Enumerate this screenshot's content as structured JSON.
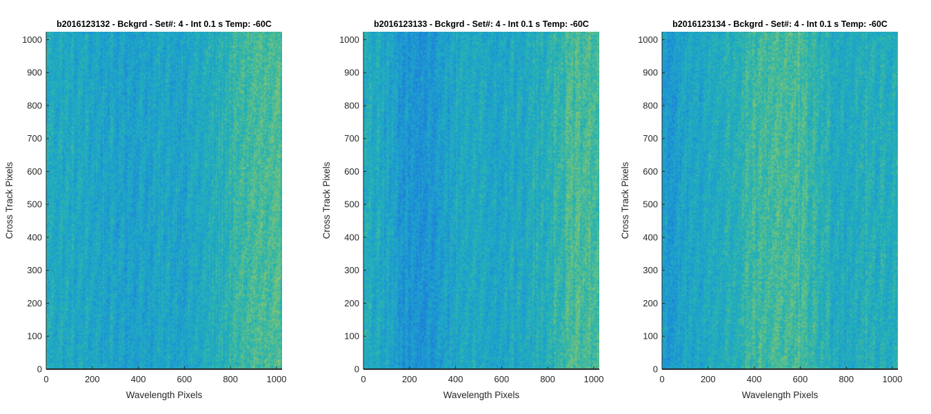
{
  "chart_data": [
    {
      "type": "heatmap",
      "title": "b2016123132 - Bckgrd - Set#: 4 - Int 0.1 s Temp: -60C",
      "xlabel": "Wavelength Pixels",
      "ylabel": "Cross Track Pixels",
      "xlim": [
        0,
        1024
      ],
      "ylim": [
        0,
        1024
      ],
      "xticks": [
        0,
        200,
        400,
        600,
        800,
        1000
      ],
      "yticks": [
        0,
        100,
        200,
        300,
        400,
        500,
        600,
        700,
        800,
        900,
        1000
      ],
      "colormap": [
        "#1f7fd9",
        "#1d9fd0",
        "#25b3b3",
        "#6cc17f",
        "#b5c85a"
      ],
      "column_profile": {
        "x": [
          0,
          100,
          200,
          300,
          400,
          500,
          600,
          700,
          800,
          900,
          1024
        ],
        "level": [
          0.42,
          0.36,
          0.34,
          0.3,
          0.3,
          0.32,
          0.33,
          0.38,
          0.5,
          0.62,
          0.58
        ]
      },
      "grid": false
    },
    {
      "type": "heatmap",
      "title": "b2016123133 - Bckgrd - Set#: 4 - Int 0.1 s Temp: -60C",
      "xlabel": "Wavelength Pixels",
      "ylabel": "Cross Track Pixels",
      "xlim": [
        0,
        1024
      ],
      "ylim": [
        0,
        1024
      ],
      "xticks": [
        0,
        200,
        400,
        600,
        800,
        1000
      ],
      "yticks": [
        0,
        100,
        200,
        300,
        400,
        500,
        600,
        700,
        800,
        900,
        1000
      ],
      "colormap": [
        "#1f7fd9",
        "#1d9fd0",
        "#25b3b3",
        "#6cc17f",
        "#b5c85a"
      ],
      "column_profile": {
        "x": [
          0,
          100,
          200,
          250,
          300,
          400,
          500,
          600,
          700,
          800,
          900,
          1024
        ],
        "level": [
          0.4,
          0.34,
          0.18,
          0.14,
          0.18,
          0.36,
          0.38,
          0.34,
          0.36,
          0.48,
          0.6,
          0.62
        ]
      },
      "grid": false
    },
    {
      "type": "heatmap",
      "title": "b2016123134 - Bckgrd - Set#: 4 - Int 0.1 s Temp: -60C",
      "xlabel": "Wavelength Pixels",
      "ylabel": "Cross Track Pixels",
      "xlim": [
        0,
        1024
      ],
      "ylim": [
        0,
        1024
      ],
      "xticks": [
        0,
        200,
        400,
        600,
        800,
        1000
      ],
      "yticks": [
        0,
        100,
        200,
        300,
        400,
        500,
        600,
        700,
        800,
        900,
        1000
      ],
      "colormap": [
        "#1f7fd9",
        "#1d9fd0",
        "#25b3b3",
        "#6cc17f",
        "#b5c85a"
      ],
      "column_profile": {
        "x": [
          0,
          50,
          100,
          200,
          300,
          400,
          500,
          600,
          700,
          800,
          900,
          1024
        ],
        "level": [
          0.26,
          0.22,
          0.3,
          0.38,
          0.44,
          0.54,
          0.64,
          0.58,
          0.46,
          0.4,
          0.44,
          0.42
        ]
      },
      "grid": false
    }
  ]
}
